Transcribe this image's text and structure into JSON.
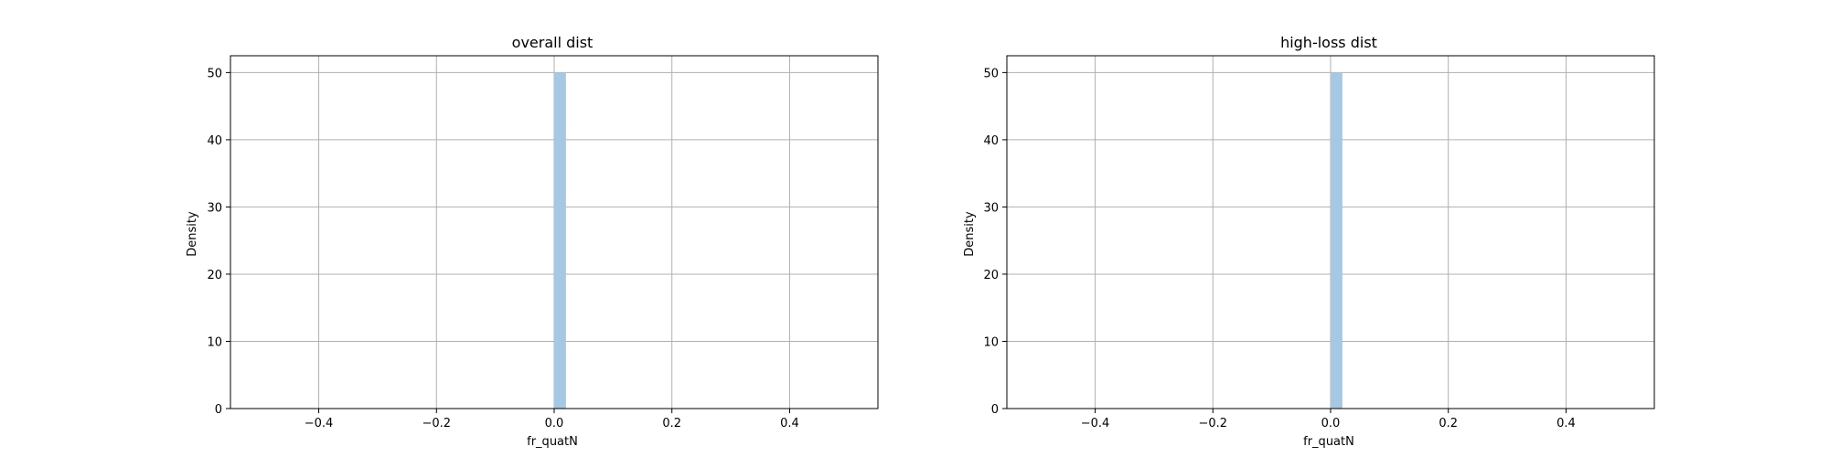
{
  "chart_data": [
    {
      "type": "bar",
      "title": "overall dist",
      "xlabel": "fr_quatN",
      "ylabel": "Density",
      "xlim": [
        -0.55,
        0.55
      ],
      "ylim": [
        0,
        52.5
      ],
      "xticks": [
        -0.4,
        -0.2,
        0.0,
        0.2,
        0.4
      ],
      "xtick_labels": [
        "−0.4",
        "−0.2",
        "0.0",
        "0.2",
        "0.4"
      ],
      "yticks": [
        0,
        10,
        20,
        30,
        40,
        50
      ],
      "ytick_labels": [
        "0",
        "10",
        "20",
        "30",
        "40",
        "50"
      ],
      "grid": true,
      "bars": [
        {
          "x0": 0.0,
          "x1": 0.02,
          "value": 50
        }
      ],
      "bar_color": "#a6c8e2"
    },
    {
      "type": "bar",
      "title": "high-loss dist",
      "xlabel": "fr_quatN",
      "ylabel": "Density",
      "xlim": [
        -0.55,
        0.55
      ],
      "ylim": [
        0,
        52.5
      ],
      "xticks": [
        -0.4,
        -0.2,
        0.0,
        0.2,
        0.4
      ],
      "xtick_labels": [
        "−0.4",
        "−0.2",
        "0.0",
        "0.2",
        "0.4"
      ],
      "yticks": [
        0,
        10,
        20,
        30,
        40,
        50
      ],
      "ytick_labels": [
        "0",
        "10",
        "20",
        "30",
        "40",
        "50"
      ],
      "grid": true,
      "bars": [
        {
          "x0": 0.0,
          "x1": 0.02,
          "value": 50
        }
      ],
      "bar_color": "#a6c8e2"
    }
  ]
}
